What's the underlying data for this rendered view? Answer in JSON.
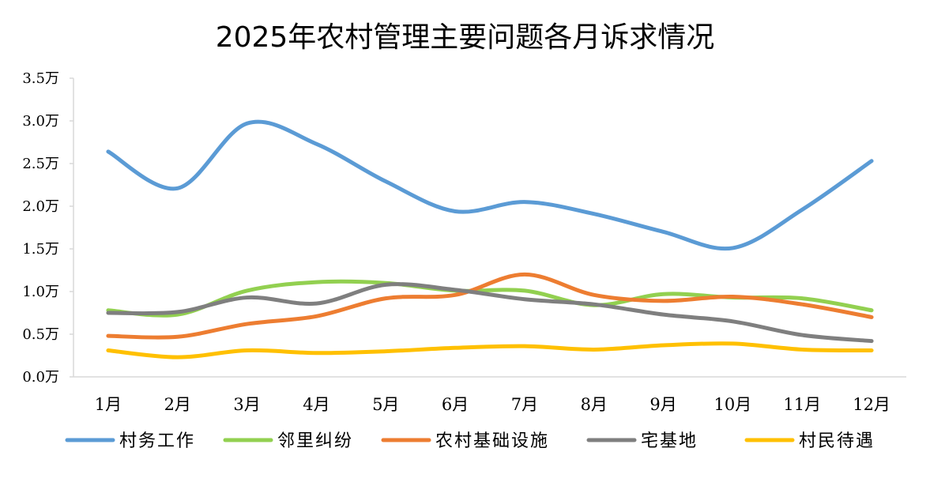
{
  "chart_data": {
    "type": "line",
    "title": "2025年农村管理主要问题各月诉求情况",
    "xlabel": "",
    "ylabel": "",
    "categories": [
      "1月",
      "2月",
      "3月",
      "4月",
      "5月",
      "6月",
      "7月",
      "8月",
      "9月",
      "10月",
      "11月",
      "12月"
    ],
    "ylim": [
      0,
      3.5
    ],
    "yticks": [
      0,
      0.5,
      1.0,
      1.5,
      2.0,
      2.5,
      3.0,
      3.5
    ],
    "ytick_labels": [
      "0.0万",
      "0.5万",
      "1.0万",
      "1.5万",
      "2.0万",
      "2.5万",
      "3.0万",
      "3.5万"
    ],
    "unit": "万",
    "grid": false,
    "smooth": true,
    "legend_position": "bottom",
    "series": [
      {
        "name": "村务工作",
        "color": "#5B9BD5",
        "values": [
          2.64,
          2.21,
          2.97,
          2.73,
          2.29,
          1.94,
          2.05,
          1.91,
          1.7,
          1.51,
          1.96,
          2.53
        ]
      },
      {
        "name": "邻里纠纷",
        "color": "#92D050",
        "values": [
          0.78,
          0.73,
          1.01,
          1.11,
          1.1,
          1.01,
          1.01,
          0.84,
          0.97,
          0.93,
          0.92,
          0.78
        ]
      },
      {
        "name": "农村基础设施",
        "color": "#ED7D31",
        "values": [
          0.48,
          0.47,
          0.62,
          0.71,
          0.92,
          0.96,
          1.2,
          0.96,
          0.89,
          0.94,
          0.85,
          0.7
        ]
      },
      {
        "name": "宅基地",
        "color": "#7F7F7F",
        "values": [
          0.75,
          0.76,
          0.93,
          0.86,
          1.08,
          1.02,
          0.91,
          0.85,
          0.73,
          0.65,
          0.49,
          0.42
        ]
      },
      {
        "name": "村民待遇",
        "color": "#FFC000",
        "values": [
          0.31,
          0.23,
          0.31,
          0.28,
          0.3,
          0.34,
          0.36,
          0.32,
          0.37,
          0.39,
          0.32,
          0.31
        ]
      }
    ]
  }
}
